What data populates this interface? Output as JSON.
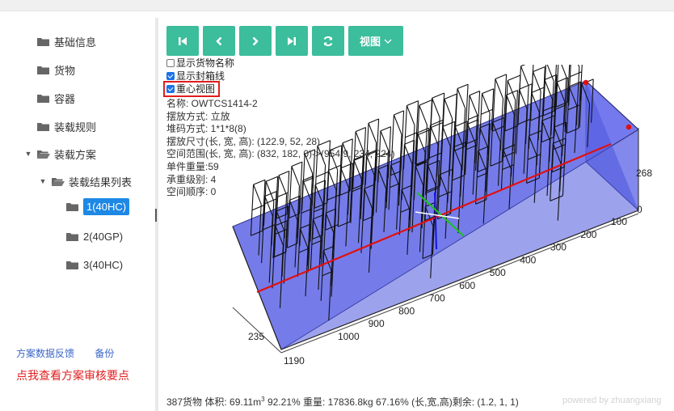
{
  "sidebar": {
    "items": [
      {
        "label": "基础信息"
      },
      {
        "label": "货物"
      },
      {
        "label": "容器"
      },
      {
        "label": "装载规则"
      },
      {
        "label": "装载方案"
      },
      {
        "label": "装载结果列表"
      },
      {
        "label": "1(40HC)"
      },
      {
        "label": "2(40GP)"
      },
      {
        "label": "3(40HC)"
      }
    ],
    "feedback_link": "方案数据反馈",
    "backup_link": "备份",
    "audit_link": "点我查看方案审核要点"
  },
  "toolbar": {
    "view_label": "视图",
    "icons": [
      "first-icon",
      "prev-icon",
      "next-icon",
      "last-icon",
      "refresh-icon",
      "chevron-down-icon"
    ]
  },
  "options": {
    "show_names": {
      "label": "显示货物名称",
      "checked": false
    },
    "show_box_lines": {
      "label": "显示封箱线",
      "checked": true
    },
    "gravity_view": {
      "label": "重心视图",
      "checked": true
    }
  },
  "info": {
    "name": "名称: OWTCS1414-2",
    "placement": "摆放方式: 立放",
    "stacking": "堆码方式: 1*1*8(8)",
    "size": "摆放尺寸(长, 宽, 高): (122.9, 52, 28)",
    "range": "空间范围(长, 宽, 高): (832, 182, 0)->(954.9, 234, 224)",
    "unit_weight": "单件重量:59",
    "load_level": "承重级别: 4",
    "order": "空间顺序: 0"
  },
  "scene": {
    "length_ticks": [
      "100",
      "200",
      "300",
      "400",
      "500",
      "600",
      "700",
      "800",
      "900",
      "1000"
    ],
    "length_end": "1190",
    "width_label": "235",
    "height_label": "268",
    "height_zero": "0",
    "colors": {
      "container": "#5a64e8",
      "centerline": "#e11010",
      "corner": "#e11010"
    }
  },
  "footer": {
    "prefix": "387货物 体积: 69.11m",
    "exponent": "3",
    "rest": " 92.21% 重量: 17836.8kg 67.16% (长,宽,高)剩余: (1.2, 1, 1)"
  },
  "watermark": "powered by zhuangxiang"
}
